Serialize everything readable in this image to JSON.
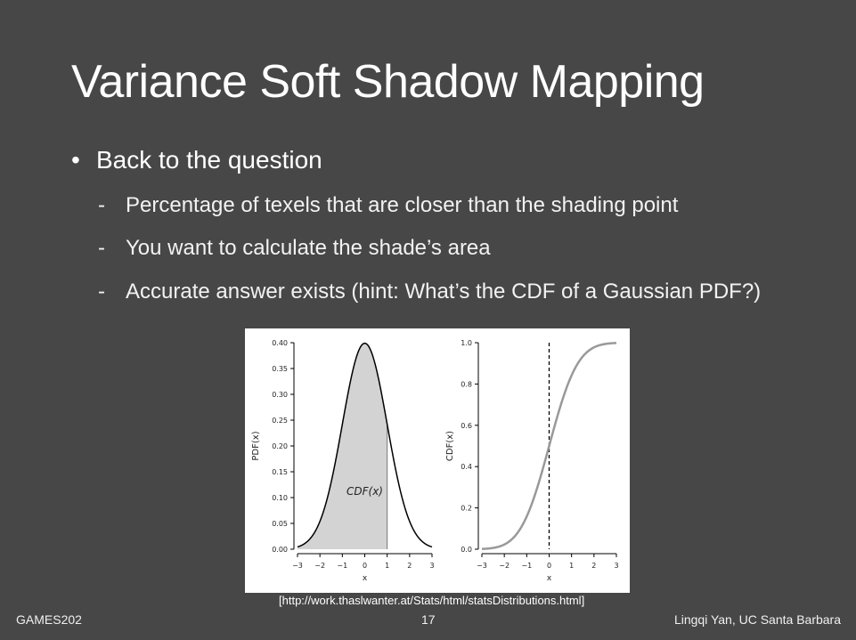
{
  "slide": {
    "title": "Variance Soft Shadow Mapping",
    "bullet": "Back to the question",
    "bullet_marker": "•",
    "sub_marker": "-",
    "subs": [
      "Percentage of texels that are closer than the shading point",
      "You want to calculate the shade’s area",
      "Accurate answer exists (hint: What’s the CDF of a Gaussian PDF?)"
    ],
    "caption": "[http://work.thaslwanter.at/Stats/html/statsDistributions.html]",
    "footer_left": "GAMES202",
    "footer_center": "17",
    "footer_right": "Lingqi Yan, UC Santa Barbara"
  },
  "chart_data": [
    {
      "type": "area",
      "function": "normal_pdf",
      "ylabel": "PDF(x)",
      "xlabel": "x",
      "xlim": [
        -3,
        3
      ],
      "ylim": [
        0,
        0.4
      ],
      "xticks": [
        -3,
        -2,
        -1,
        0,
        1,
        2,
        3
      ],
      "xtick_labels": [
        "−3",
        "−2",
        "−1",
        "0",
        "1",
        "2",
        "3"
      ],
      "yticks": [
        0,
        0.05,
        0.1,
        0.15,
        0.2,
        0.25,
        0.3,
        0.35,
        0.4
      ],
      "ytick_labels": [
        "0.00",
        "0.05",
        "0.10",
        "0.15",
        "0.20",
        "0.25",
        "0.30",
        "0.35",
        "0.40"
      ],
      "shaded_upto_x": 1,
      "annotation": "CDF(x)",
      "color_line": "#000000",
      "color_fill": "#d3d3d3"
    },
    {
      "type": "line",
      "function": "normal_cdf",
      "ylabel": "CDF(x)",
      "xlabel": "x",
      "xlim": [
        -3,
        3
      ],
      "ylim": [
        0,
        1
      ],
      "xticks": [
        -3,
        -2,
        -1,
        0,
        1,
        2,
        3
      ],
      "xtick_labels": [
        "−3",
        "−2",
        "−1",
        "0",
        "1",
        "2",
        "3"
      ],
      "yticks": [
        0,
        0.2,
        0.4,
        0.6,
        0.8,
        1.0
      ],
      "ytick_labels": [
        "0.0",
        "0.2",
        "0.4",
        "0.6",
        "0.8",
        "1.0"
      ],
      "vline_x": 0,
      "color_line": "#999999"
    }
  ]
}
